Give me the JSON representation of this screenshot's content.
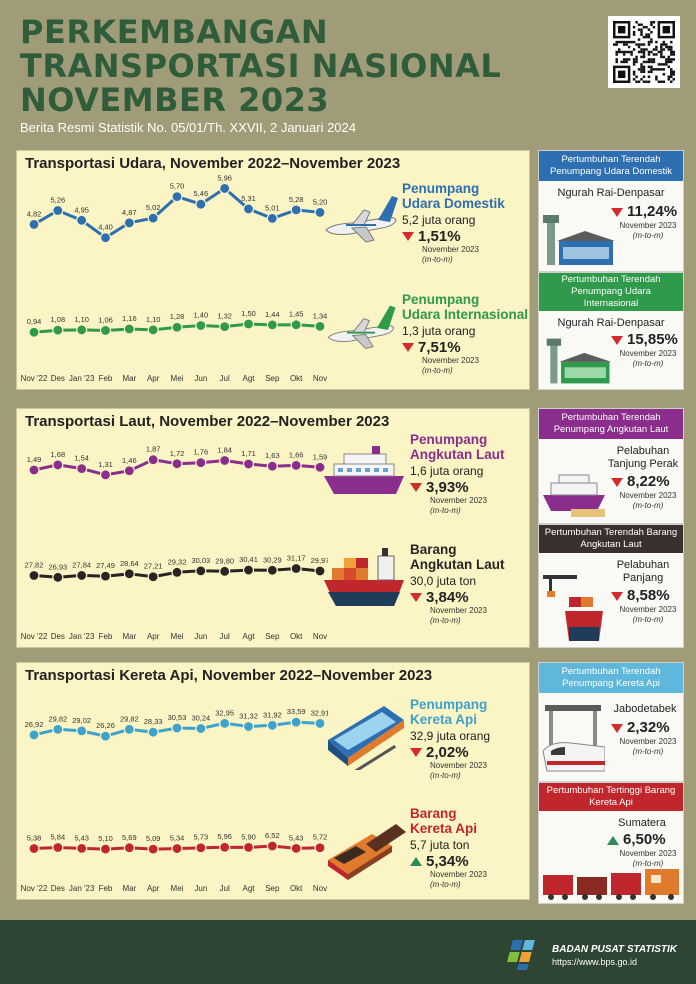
{
  "header": {
    "title_line1": "PERKEMBANGAN",
    "title_line2": "TRANSPORTASI NASIONAL",
    "title_line3": "NOVEMBER 2023",
    "subtitle": "Berita Resmi Statistik No. 05/01/Th. XXVII, 2 Januari 2024"
  },
  "months": [
    "Nov '22",
    "Des",
    "Jan '23",
    "Feb",
    "Mar",
    "Apr",
    "Mei",
    "Jun",
    "Jul",
    "Agt",
    "Sep",
    "Okt",
    "Nov"
  ],
  "colors": {
    "udara": "#2d6fb0",
    "udara_int": "#2e9a4a",
    "laut": "#8a2d8c",
    "barang_laut": "#2a2323",
    "kereta": "#3da2cc",
    "barang_kereta": "#c0272d"
  },
  "udara": {
    "section_title": "Transportasi Udara, November 2022–November 2023",
    "domestic": {
      "title_l1": "Penumpang",
      "title_l2": "Udara Domestik",
      "value": "5,2 juta orang",
      "pct": "1,51%",
      "note1": "November 2023",
      "note2": "(m-to-m)"
    },
    "international": {
      "title_l1": "Penumpang",
      "title_l2": "Udara Internasional",
      "value": "1,3 juta orang",
      "pct": "7,51%",
      "note1": "November 2023",
      "note2": "(m-to-m)"
    },
    "side1": {
      "head": "Pertumbuhan Terendah Penumpang Udara Domestik",
      "name": "Ngurah Rai-Denpasar",
      "pct": "11,24%",
      "note1": "November 2023",
      "note2": "(m-to-m)"
    },
    "side2": {
      "head": "Pertumbuhan Terendah Penumpang Udara Internasional",
      "name": "Ngurah Rai-Denpasar",
      "pct": "15,85%",
      "note1": "November 2023",
      "note2": "(m-to-m)"
    }
  },
  "laut": {
    "section_title": "Transportasi Laut, November 2022–November 2023",
    "passenger": {
      "title_l1": "Penumpang",
      "title_l2": "Angkutan Laut",
      "value": "1,6 juta orang",
      "pct": "3,93%",
      "note1": "November 2023",
      "note2": "(m-to-m)"
    },
    "cargo": {
      "title_l1": "Barang",
      "title_l2": "Angkutan Laut",
      "value": "30,0 juta ton",
      "pct": "3,84%",
      "note1": "November 2023",
      "note2": "(m-to-m)"
    },
    "side1": {
      "head": "Pertumbuhan Terendah Penumpang Angkutan Laut",
      "name_l1": "Pelabuhan",
      "name_l2": "Tanjung Perak",
      "pct": "8,22%",
      "note1": "November 2023",
      "note2": "(m-to-m)"
    },
    "side2": {
      "head": "Pertumbuhan Terendah Barang Angkutan Laut",
      "name_l1": "Pelabuhan",
      "name_l2": "Panjang",
      "pct": "8,58%",
      "note1": "November 2023",
      "note2": "(m-to-m)"
    }
  },
  "kereta": {
    "section_title": "Transportasi Kereta Api, November 2022–November 2023",
    "passenger": {
      "title_l1": "Penumpang",
      "title_l2": "Kereta Api",
      "value": "32,9 juta orang",
      "pct": "2,02%",
      "note1": "November 2023",
      "note2": "(m-to-m)"
    },
    "cargo": {
      "title_l1": "Barang",
      "title_l2": "Kereta Api",
      "value": "5,7 juta ton",
      "pct": "5,34%",
      "note1": "November 2023",
      "note2": "(m-to-m)"
    },
    "side1": {
      "head": "Pertumbuhan Terendah Penumpang Kereta Api",
      "name": "Jabodetabek",
      "pct": "2,32%",
      "note1": "November 2023",
      "note2": "(m-to-m)"
    },
    "side2": {
      "head": "Pertumbuhan Tertinggi Barang Kereta Api",
      "name": "Sumatera",
      "pct": "6,50%",
      "note1": "November 2023",
      "note2": "(m-to-m)"
    }
  },
  "footer": {
    "org": "BADAN PUSAT STATISTIK",
    "url": "https://www.bps.go.id"
  },
  "chart_data": [
    {
      "type": "line",
      "name": "udara_domestik",
      "categories": [
        "Nov '22",
        "Des",
        "Jan '23",
        "Feb",
        "Mar",
        "Apr",
        "Mei",
        "Jun",
        "Jul",
        "Agt",
        "Sep",
        "Okt",
        "Nov"
      ],
      "values": [
        4.82,
        5.26,
        4.95,
        4.4,
        4.87,
        5.02,
        5.7,
        5.46,
        5.96,
        5.31,
        5.01,
        5.28,
        5.2
      ],
      "labels": [
        "4,82",
        "5,26",
        "4,95",
        "4,40",
        "4,87",
        "5,02",
        "5,70",
        "5,46",
        "5,96",
        "5,31",
        "5,01",
        "5,28",
        "5,20"
      ],
      "ylim": [
        4.2,
        6.1
      ]
    },
    {
      "type": "line",
      "name": "udara_internasional",
      "categories": [
        "Nov '22",
        "Des",
        "Jan '23",
        "Feb",
        "Mar",
        "Apr",
        "Mei",
        "Jun",
        "Jul",
        "Agt",
        "Sep",
        "Okt",
        "Nov"
      ],
      "values": [
        0.94,
        1.08,
        1.1,
        1.06,
        1.16,
        1.1,
        1.28,
        1.4,
        1.32,
        1.5,
        1.44,
        1.45,
        1.34
      ],
      "labels": [
        "0,94",
        "1,08",
        "1,10",
        "1,06",
        "1,16",
        "1,10",
        "1,28",
        "1,40",
        "1,32",
        "1,50",
        "1,44",
        "1,45",
        "1,34"
      ],
      "ylim": [
        0,
        3
      ]
    },
    {
      "type": "line",
      "name": "penumpang_laut",
      "categories": [
        "Nov '22",
        "Des",
        "Jan '23",
        "Feb",
        "Mar",
        "Apr",
        "Mei",
        "Jun",
        "Jul",
        "Agt",
        "Sep",
        "Okt",
        "Nov"
      ],
      "values": [
        1.49,
        1.68,
        1.54,
        1.31,
        1.46,
        1.87,
        1.72,
        1.76,
        1.84,
        1.71,
        1.63,
        1.66,
        1.59
      ],
      "labels": [
        "1,49",
        "1,68",
        "1,54",
        "1,31",
        "1,46",
        "1,87",
        "1,72",
        "1,76",
        "1,84",
        "1,71",
        "1,63",
        "1,66",
        "1,59"
      ],
      "ylim": [
        0.6,
        2.6
      ]
    },
    {
      "type": "line",
      "name": "barang_laut",
      "categories": [
        "Nov '22",
        "Des",
        "Jan '23",
        "Feb",
        "Mar",
        "Apr",
        "Mei",
        "Jun",
        "Jul",
        "Agt",
        "Sep",
        "Okt",
        "Nov"
      ],
      "values": [
        27.82,
        26.93,
        27.84,
        27.49,
        28.64,
        27.21,
        29.32,
        30.03,
        29.8,
        30.41,
        30.29,
        31.17,
        29.97
      ],
      "labels": [
        "27,82",
        "26,93",
        "27,84",
        "27,49",
        "28,64",
        "27,21",
        "29,32",
        "30,03",
        "29,80",
        "30,41",
        "30,29",
        "31,17",
        "29,97"
      ],
      "ylim": [
        18,
        40
      ]
    },
    {
      "type": "line",
      "name": "penumpang_kereta",
      "categories": [
        "Nov '22",
        "Des",
        "Jan '23",
        "Feb",
        "Mar",
        "Apr",
        "Mei",
        "Jun",
        "Jul",
        "Agt",
        "Sep",
        "Okt",
        "Nov"
      ],
      "values": [
        26.92,
        29.82,
        29.02,
        26.26,
        29.82,
        28.33,
        30.53,
        30.24,
        32.95,
        31.32,
        31.92,
        33.59,
        32.91
      ],
      "labels": [
        "26,92",
        "29,82",
        "29,02",
        "26,26",
        "29,82",
        "28,33",
        "30,53",
        "30,24",
        "32,95",
        "31,32",
        "31,92",
        "33,59",
        "32,91"
      ],
      "ylim": [
        18,
        42
      ]
    },
    {
      "type": "line",
      "name": "barang_kereta",
      "categories": [
        "Nov '22",
        "Des",
        "Jan '23",
        "Feb",
        "Mar",
        "Apr",
        "Mei",
        "Jun",
        "Jul",
        "Agt",
        "Sep",
        "Okt",
        "Nov"
      ],
      "values": [
        5.38,
        5.84,
        5.43,
        5.1,
        5.69,
        5.09,
        5.34,
        5.73,
        5.96,
        5.9,
        6.52,
        5.43,
        5.72
      ],
      "labels": [
        "5,38",
        "5,84",
        "5,43",
        "5,10",
        "5,69",
        "5,09",
        "5,34",
        "5,73",
        "5,96",
        "5,90",
        "6,52",
        "5,43",
        "5,72"
      ],
      "ylim": [
        0,
        14
      ]
    }
  ]
}
